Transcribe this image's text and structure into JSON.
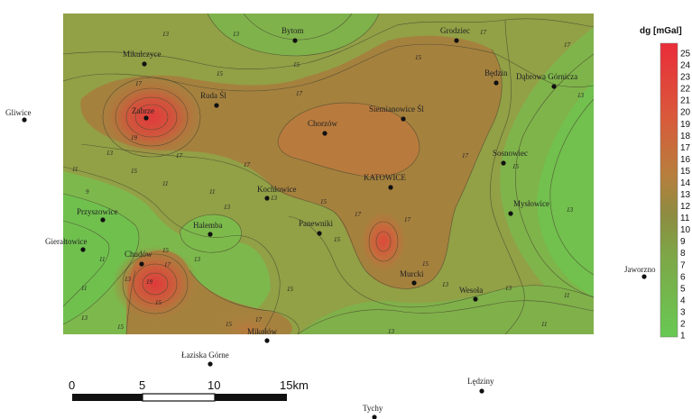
{
  "map": {
    "cities": [
      {
        "name": "Bytom",
        "label": "Bytom"
      },
      {
        "name": "Grodziec",
        "label": "Grodziec"
      },
      {
        "name": "Mikulczyce",
        "label": "Mikulczyce"
      },
      {
        "name": "Będzin",
        "label": "Będzin"
      },
      {
        "name": "Dąbrowa Górnicza",
        "label": "Dąbrowa Górnicza"
      },
      {
        "name": "Gliwice",
        "label": "Gliwice"
      },
      {
        "name": "Ruda Śl",
        "label": "Ruda Śl"
      },
      {
        "name": "Zabrze",
        "label": "Zabrze"
      },
      {
        "name": "Siemianowice Śl",
        "label": "Siemianowice Śl"
      },
      {
        "name": "Chorzów",
        "label": "Chorzów"
      },
      {
        "name": "Sosnowiec",
        "label": "Sosnowiec"
      },
      {
        "name": "KATOWICE",
        "label": "KATOWICE"
      },
      {
        "name": "Kochłowice",
        "label": "Kochłowice"
      },
      {
        "name": "Mysłowice",
        "label": "Mysłowice"
      },
      {
        "name": "Przyszowice",
        "label": "Przyszowice"
      },
      {
        "name": "Halemba",
        "label": "Halemba"
      },
      {
        "name": "Panewniki",
        "label": "Panewniki"
      },
      {
        "name": "Gierałtowice",
        "label": "Gierałtowice"
      },
      {
        "name": "Chudów",
        "label": "Chudów"
      },
      {
        "name": "Jaworzno",
        "label": "Jaworzno"
      },
      {
        "name": "Murcki",
        "label": "Murcki"
      },
      {
        "name": "Wesoła",
        "label": "Wesoła"
      },
      {
        "name": "Mikołów",
        "label": "Mikołów"
      },
      {
        "name": "Łaziska Górne",
        "label": "Łaziska Górne"
      },
      {
        "name": "Lędziny",
        "label": "Lędziny"
      },
      {
        "name": "Tychy",
        "label": "Tychy"
      }
    ],
    "contour_labels": [
      "13",
      "13",
      "15",
      "15",
      "17",
      "17",
      "17",
      "15",
      "17",
      "19",
      "17",
      "13",
      "15",
      "17",
      "11",
      "13",
      "15",
      "9",
      "11",
      "13",
      "17",
      "15",
      "13",
      "11",
      "11",
      "13",
      "15",
      "17",
      "15",
      "13",
      "11",
      "13",
      "15",
      "17",
      "13",
      "15",
      "17",
      "17",
      "15",
      "13",
      "11",
      "19",
      "15",
      "17",
      "15",
      "13",
      "11",
      "13"
    ]
  },
  "legend": {
    "title": "dg [mGal]",
    "ticks": [
      "25",
      "24",
      "23",
      "22",
      "21",
      "20",
      "19",
      "18",
      "17",
      "16",
      "15",
      "14",
      "13",
      "12",
      "11",
      "10",
      "9",
      "8",
      "7",
      "6",
      "5",
      "4",
      "3",
      "2",
      "1"
    ],
    "colors": [
      "#e8303a",
      "#e53b3a",
      "#e1473a",
      "#dc563b",
      "#d5663b",
      "#cc723c",
      "#c07a3d",
      "#b2803d",
      "#a3833e",
      "#97863f",
      "#8f8a40",
      "#8a9142",
      "#879944",
      "#82a045",
      "#7ea547",
      "#79ab48",
      "#75b04a",
      "#71b54b",
      "#6fba4d",
      "#6dbd4e",
      "#6cc04f",
      "#6bc350",
      "#6ac551",
      "#69c752",
      "#68c953"
    ]
  },
  "scale_bar": {
    "labels": [
      "0",
      "5",
      "10",
      "15km"
    ]
  },
  "colors": {
    "high": "#e8303a",
    "mid": "#9a833f",
    "low": "#6fc04e"
  }
}
